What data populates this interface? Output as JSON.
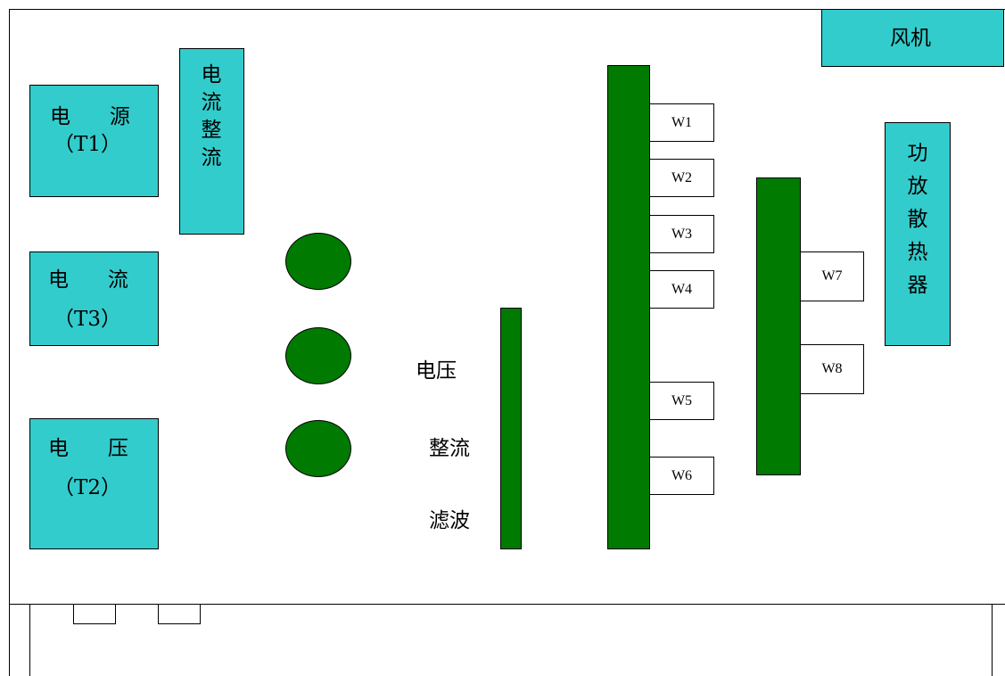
{
  "blocks": {
    "fan": "风机",
    "t1": {
      "line1": "电      源",
      "line2": "（T1）"
    },
    "t3": {
      "line1": "电      流",
      "line2": "（T3）"
    },
    "t2": {
      "line1": "电      压",
      "line2": "（T2）"
    },
    "current_rectifier": [
      "电",
      "流",
      "整",
      "流"
    ],
    "amp_heatsink": [
      "功",
      "放",
      "散",
      "热",
      "器"
    ]
  },
  "voltage_rectifier_filter": {
    "line1": "电压",
    "line2": "整流",
    "line3": "滤波"
  },
  "connectors": [
    "W1",
    "W2",
    "W3",
    "W4",
    "W5",
    "W6",
    "W7",
    "W8"
  ],
  "colors": {
    "cyan": "#33cccc",
    "green": "#007a00",
    "outline": "#000000",
    "background": "#ffffff"
  }
}
